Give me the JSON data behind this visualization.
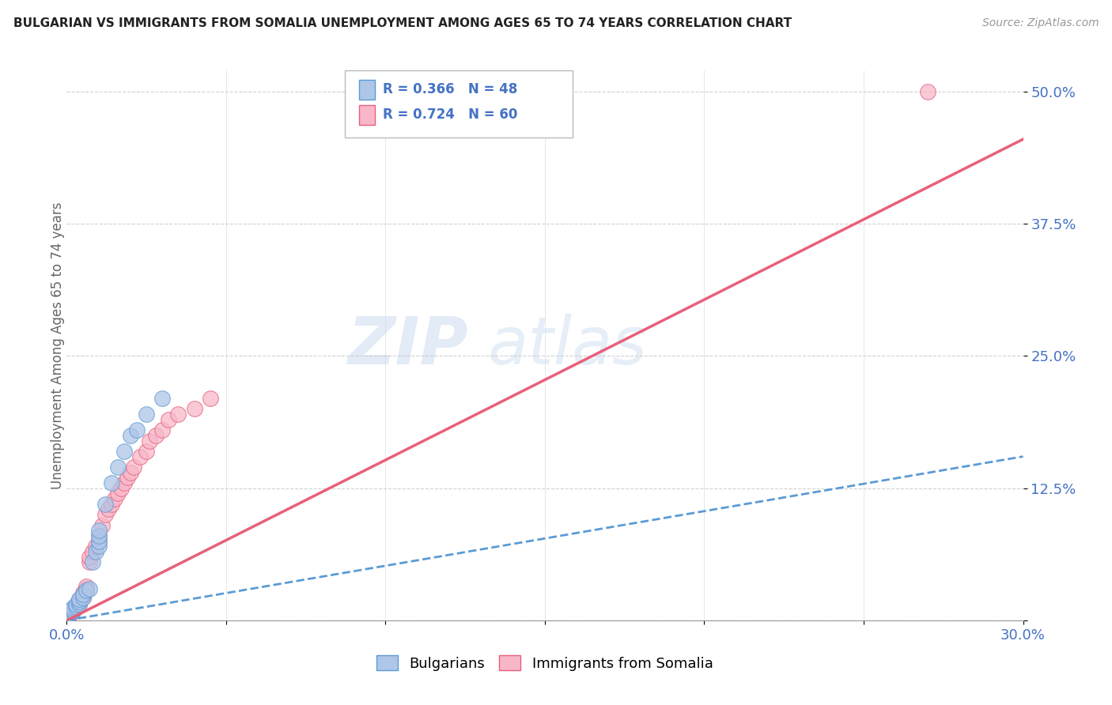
{
  "title": "BULGARIAN VS IMMIGRANTS FROM SOMALIA UNEMPLOYMENT AMONG AGES 65 TO 74 YEARS CORRELATION CHART",
  "source": "Source: ZipAtlas.com",
  "ylabel": "Unemployment Among Ages 65 to 74 years",
  "xlim": [
    0,
    0.3
  ],
  "ylim": [
    0,
    0.52
  ],
  "xticks": [
    0.0,
    0.05,
    0.1,
    0.15,
    0.2,
    0.25,
    0.3
  ],
  "yticks": [
    0.0,
    0.125,
    0.25,
    0.375,
    0.5
  ],
  "yticklabels": [
    "",
    "12.5%",
    "25.0%",
    "37.5%",
    "50.0%"
  ],
  "legend_r1": "R = 0.366   N = 48",
  "legend_r2": "R = 0.724   N = 60",
  "bulgarians_color": "#aec6e8",
  "bulgarians_edge": "#5b9bd5",
  "somalia_color": "#f7b7c9",
  "somalia_edge": "#e8607a",
  "trend_bulgarian_color": "#5b9bd5",
  "trend_somalia_color": "#e8607a",
  "axis_label_color": "#4472c4",
  "ylabel_color": "#666666",
  "bulgarians_x": [
    0.0,
    0.0,
    0.0,
    0.0,
    0.0,
    0.0,
    0.0,
    0.0,
    0.0,
    0.0,
    0.0,
    0.0,
    0.0,
    0.0,
    0.0,
    0.0,
    0.0,
    0.0,
    0.0,
    0.0,
    0.001,
    0.001,
    0.002,
    0.002,
    0.002,
    0.003,
    0.003,
    0.004,
    0.004,
    0.004,
    0.005,
    0.005,
    0.006,
    0.007,
    0.008,
    0.009,
    0.01,
    0.01,
    0.01,
    0.01,
    0.012,
    0.014,
    0.016,
    0.018,
    0.02,
    0.022,
    0.025,
    0.03
  ],
  "bulgarians_y": [
    0.0,
    0.0,
    0.0,
    0.0,
    0.001,
    0.001,
    0.001,
    0.001,
    0.002,
    0.002,
    0.002,
    0.003,
    0.003,
    0.003,
    0.004,
    0.004,
    0.005,
    0.005,
    0.006,
    0.006,
    0.007,
    0.008,
    0.009,
    0.01,
    0.012,
    0.013,
    0.015,
    0.016,
    0.018,
    0.02,
    0.022,
    0.025,
    0.028,
    0.03,
    0.055,
    0.065,
    0.07,
    0.075,
    0.08,
    0.085,
    0.11,
    0.13,
    0.145,
    0.16,
    0.175,
    0.18,
    0.195,
    0.21
  ],
  "somalia_x": [
    0.0,
    0.0,
    0.0,
    0.0,
    0.0,
    0.0,
    0.0,
    0.0,
    0.0,
    0.0,
    0.0,
    0.0,
    0.0,
    0.001,
    0.001,
    0.001,
    0.001,
    0.002,
    0.002,
    0.002,
    0.002,
    0.003,
    0.003,
    0.004,
    0.004,
    0.004,
    0.004,
    0.005,
    0.005,
    0.005,
    0.006,
    0.006,
    0.006,
    0.007,
    0.007,
    0.008,
    0.009,
    0.01,
    0.01,
    0.011,
    0.012,
    0.013,
    0.014,
    0.015,
    0.016,
    0.017,
    0.018,
    0.019,
    0.02,
    0.021,
    0.023,
    0.025,
    0.026,
    0.028,
    0.03,
    0.032,
    0.035,
    0.04,
    0.045,
    0.27
  ],
  "somalia_y": [
    0.0,
    0.0,
    0.001,
    0.001,
    0.001,
    0.002,
    0.002,
    0.002,
    0.003,
    0.003,
    0.004,
    0.004,
    0.005,
    0.005,
    0.006,
    0.007,
    0.008,
    0.008,
    0.009,
    0.01,
    0.011,
    0.012,
    0.014,
    0.015,
    0.017,
    0.018,
    0.02,
    0.022,
    0.024,
    0.026,
    0.028,
    0.03,
    0.032,
    0.055,
    0.06,
    0.065,
    0.07,
    0.075,
    0.08,
    0.09,
    0.1,
    0.105,
    0.11,
    0.115,
    0.12,
    0.125,
    0.13,
    0.135,
    0.14,
    0.145,
    0.155,
    0.16,
    0.17,
    0.175,
    0.18,
    0.19,
    0.195,
    0.2,
    0.21,
    0.5
  ],
  "bg_trend": [
    0.0,
    0.0,
    0.3,
    0.155
  ],
  "som_trend": [
    0.0,
    0.0,
    0.3,
    0.455
  ],
  "watermark_line1": "ZIP",
  "watermark_line2": "atlas"
}
